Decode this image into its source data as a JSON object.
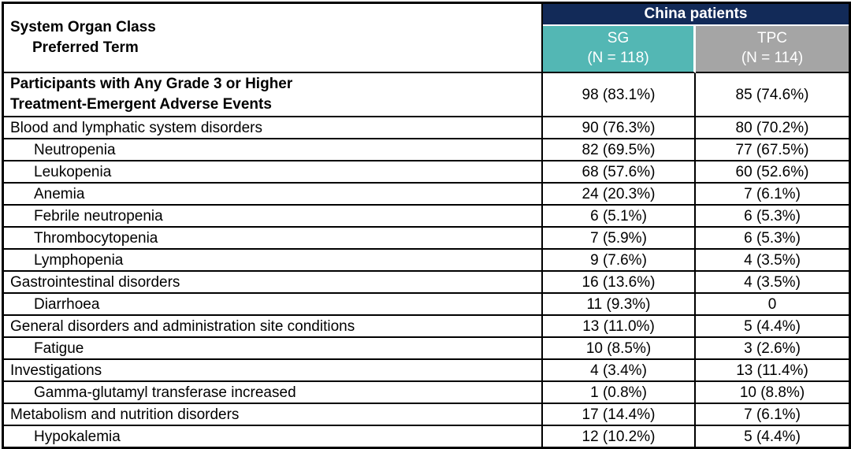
{
  "colors": {
    "group_header_bg": "#122a58",
    "sg_header_bg": "#53b7b4",
    "tpc_header_bg": "#a5a5a5",
    "header_text": "#ffffff",
    "body_text": "#000000",
    "border": "#000000"
  },
  "table": {
    "corner": {
      "line1": "System Organ Class",
      "line2": "Preferred Term"
    },
    "group_header": "China patients",
    "columns": [
      {
        "label": "SG",
        "n": "(N = 118)"
      },
      {
        "label": "TPC",
        "n": "(N = 114)"
      }
    ],
    "rows": [
      {
        "label": "Participants with Any Grade 3 or Higher",
        "label2": "Treatment-Emergent Adverse Events",
        "sg": "98 (83.1%)",
        "tpc": "85 (74.6%)"
      },
      {
        "label": "Blood and lymphatic system disorders",
        "sg": "90 (76.3%)",
        "tpc": "80 (70.2%)"
      },
      {
        "label": "Neutropenia",
        "sg": "82 (69.5%)",
        "tpc": "77 (67.5%)"
      },
      {
        "label": "Leukopenia",
        "sg": "68 (57.6%)",
        "tpc": "60 (52.6%)"
      },
      {
        "label": "Anemia",
        "sg": "24 (20.3%)",
        "tpc": "7 (6.1%)"
      },
      {
        "label": "Febrile neutropenia",
        "sg": "6 (5.1%)",
        "tpc": "6 (5.3%)"
      },
      {
        "label": "Thrombocytopenia",
        "sg": "7 (5.9%)",
        "tpc": "6 (5.3%)"
      },
      {
        "label": "Lymphopenia",
        "sg": "9 (7.6%)",
        "tpc": "4 (3.5%)"
      },
      {
        "label": "Gastrointestinal disorders",
        "sg": "16 (13.6%)",
        "tpc": "4 (3.5%)"
      },
      {
        "label": "Diarrhoea",
        "sg": "11 (9.3%)",
        "tpc": "0"
      },
      {
        "label": "General disorders and administration site conditions",
        "sg": "13 (11.0%)",
        "tpc": "5 (4.4%)"
      },
      {
        "label": "Fatigue",
        "sg": "10 (8.5%)",
        "tpc": "3 (2.6%)"
      },
      {
        "label": "Investigations",
        "sg": "4 (3.4%)",
        "tpc": "13 (11.4%)"
      },
      {
        "label": "Gamma-glutamyl transferase increased",
        "sg": "1 (0.8%)",
        "tpc": "10 (8.8%)"
      },
      {
        "label": "Metabolism and nutrition disorders",
        "sg": "17 (14.4%)",
        "tpc": "7 (6.1%)"
      },
      {
        "label": "Hypokalemia",
        "sg": "12 (10.2%)",
        "tpc": "5 (4.4%)"
      }
    ]
  }
}
